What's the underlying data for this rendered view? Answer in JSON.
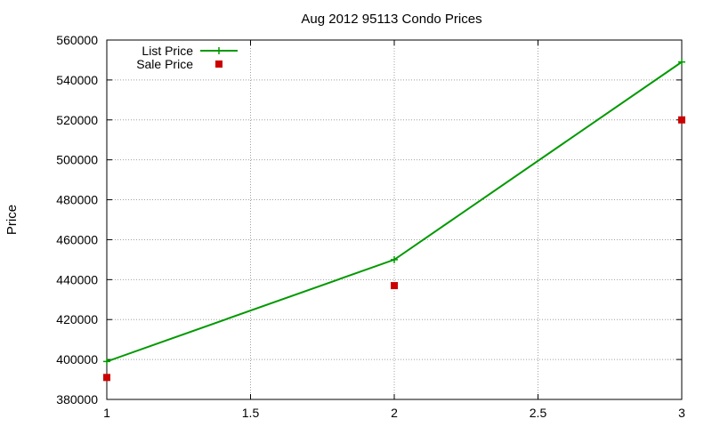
{
  "chart_data": {
    "type": "line",
    "title": "Aug 2012 95113 Condo Prices",
    "xlabel": "",
    "ylabel": "Price",
    "xlim": [
      1,
      3
    ],
    "ylim": [
      380000,
      560000
    ],
    "x_ticks": [
      "1",
      "1.5",
      "2",
      "2.5",
      "3"
    ],
    "y_ticks": [
      "380000",
      "400000",
      "420000",
      "440000",
      "460000",
      "480000",
      "500000",
      "520000",
      "540000",
      "560000"
    ],
    "grid": true,
    "legend_position": "top-left",
    "series": [
      {
        "name": "List Price",
        "style": "linespoints",
        "marker": "plus",
        "color": "#009900",
        "x": [
          1,
          2,
          3
        ],
        "y": [
          399000,
          450000,
          549000
        ]
      },
      {
        "name": "Sale Price",
        "style": "points",
        "marker": "square",
        "color": "#cc0000",
        "x": [
          1,
          2,
          3
        ],
        "y": [
          391000,
          437000,
          520000
        ]
      }
    ]
  }
}
